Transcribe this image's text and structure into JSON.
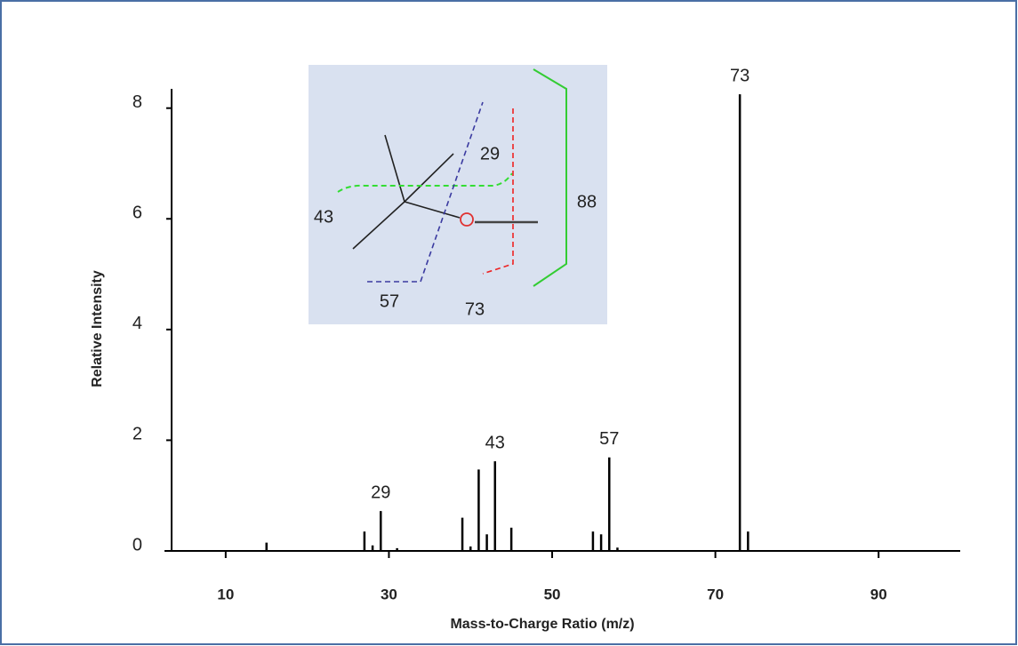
{
  "chart_data": {
    "type": "bar",
    "x_label": "Mass-to-Charge Ratio (m/z)",
    "y_label": "Relative Intensity",
    "x": [
      15,
      27,
      28,
      29,
      31,
      39,
      40,
      41,
      42,
      43,
      45,
      55,
      56,
      57,
      58,
      73,
      74
    ],
    "values": [
      0.15,
      0.35,
      0.1,
      0.72,
      0.05,
      0.6,
      0.08,
      1.47,
      0.3,
      1.62,
      0.42,
      0.35,
      0.3,
      1.69,
      0.06,
      8.25,
      0.35
    ],
    "color": "#000000",
    "xlim": [
      2.5,
      100
    ],
    "xticks": [
      10,
      30,
      50,
      70,
      90
    ],
    "ylim": [
      0,
      8.3
    ],
    "yticks": [
      0,
      2,
      4,
      6,
      8
    ],
    "peak_labels": [
      {
        "x": 29,
        "text": "29"
      },
      {
        "x": 43,
        "text": "43"
      },
      {
        "x": 57,
        "text": "57"
      },
      {
        "x": 73,
        "text": "73"
      }
    ],
    "inset_labels": [
      "29",
      "43",
      "57",
      "73",
      "88"
    ]
  }
}
